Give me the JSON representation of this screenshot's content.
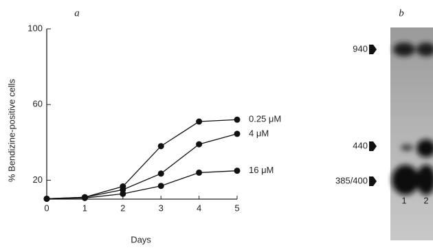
{
  "chart_data": {
    "type": "line",
    "panel_label": "a",
    "x_label": "Days",
    "y_label": "% Bendizine-positive cells",
    "x": [
      0,
      1,
      2,
      3,
      4,
      5
    ],
    "series": [
      {
        "name": "0.25 μM",
        "color": "#111111",
        "values": [
          10.2,
          11,
          16.7,
          38,
          51,
          52
        ]
      },
      {
        "name": "4 μM",
        "color": "#111111",
        "values": [
          10.2,
          11,
          15,
          23.5,
          39,
          44.5
        ]
      },
      {
        "name": "16 μM",
        "color": "#111111",
        "values": [
          10.2,
          10.6,
          12.8,
          17,
          24,
          25
        ]
      }
    ],
    "xlim": [
      0,
      5
    ],
    "xticks": [
      0,
      1,
      2,
      3,
      4,
      5
    ],
    "ylim": [
      10,
      100
    ],
    "yticks": [
      20,
      60,
      100
    ]
  },
  "gel": {
    "panel_label": "b",
    "bands": [
      "940",
      "440",
      "385/400"
    ],
    "lanes": [
      "1",
      "2"
    ]
  }
}
